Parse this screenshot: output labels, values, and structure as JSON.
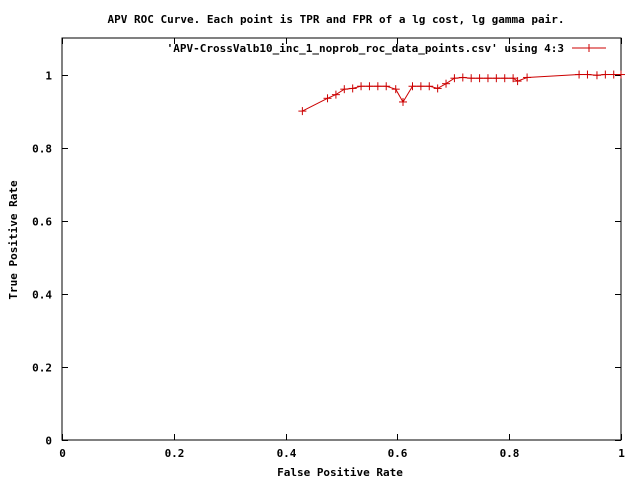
{
  "chart_data": {
    "type": "line",
    "title": "APV ROC Curve. Each point is TPR and FPR of a lg cost, lg gamma pair.",
    "xlabel": "False Positive Rate",
    "ylabel": "True Positive Rate",
    "xlim": [
      0,
      1
    ],
    "ylim": [
      0,
      1.1
    ],
    "grid": false,
    "legend_position": "top-right",
    "x_ticks": [
      0,
      0.2,
      0.4,
      0.6,
      0.8,
      1
    ],
    "x_tick_labels": [
      "0",
      "0.2",
      "0.4",
      "0.6",
      "0.8",
      "1"
    ],
    "y_ticks": [
      0,
      0.2,
      0.4,
      0.6,
      0.8,
      1
    ],
    "y_tick_labels": [
      "0",
      "0.2",
      "0.4",
      "0.6",
      "0.8",
      "1"
    ],
    "series": [
      {
        "name": "'APV-CrossValb10_inc_1_noprob_roc_data_points.csv' using 4:3",
        "color": "#cc0000",
        "marker": "plus",
        "points": [
          {
            "x": 0.43,
            "y": 0.9
          },
          {
            "x": 0.475,
            "y": 0.935
          },
          {
            "x": 0.49,
            "y": 0.945
          },
          {
            "x": 0.505,
            "y": 0.96
          },
          {
            "x": 0.52,
            "y": 0.962
          },
          {
            "x": 0.535,
            "y": 0.968
          },
          {
            "x": 0.55,
            "y": 0.968
          },
          {
            "x": 0.565,
            "y": 0.968
          },
          {
            "x": 0.58,
            "y": 0.968
          },
          {
            "x": 0.597,
            "y": 0.96
          },
          {
            "x": 0.61,
            "y": 0.925
          },
          {
            "x": 0.627,
            "y": 0.968
          },
          {
            "x": 0.642,
            "y": 0.968
          },
          {
            "x": 0.657,
            "y": 0.968
          },
          {
            "x": 0.672,
            "y": 0.962
          },
          {
            "x": 0.687,
            "y": 0.975
          },
          {
            "x": 0.702,
            "y": 0.99
          },
          {
            "x": 0.717,
            "y": 0.992
          },
          {
            "x": 0.732,
            "y": 0.99
          },
          {
            "x": 0.747,
            "y": 0.99
          },
          {
            "x": 0.762,
            "y": 0.99
          },
          {
            "x": 0.777,
            "y": 0.99
          },
          {
            "x": 0.792,
            "y": 0.99
          },
          {
            "x": 0.807,
            "y": 0.99
          },
          {
            "x": 0.815,
            "y": 0.982
          },
          {
            "x": 0.832,
            "y": 0.992
          },
          {
            "x": 0.925,
            "y": 1.0
          },
          {
            "x": 0.94,
            "y": 1.0
          },
          {
            "x": 0.957,
            "y": 0.998
          },
          {
            "x": 0.972,
            "y": 1.0
          },
          {
            "x": 0.987,
            "y": 1.0
          },
          {
            "x": 1.0,
            "y": 1.0
          }
        ]
      }
    ]
  }
}
